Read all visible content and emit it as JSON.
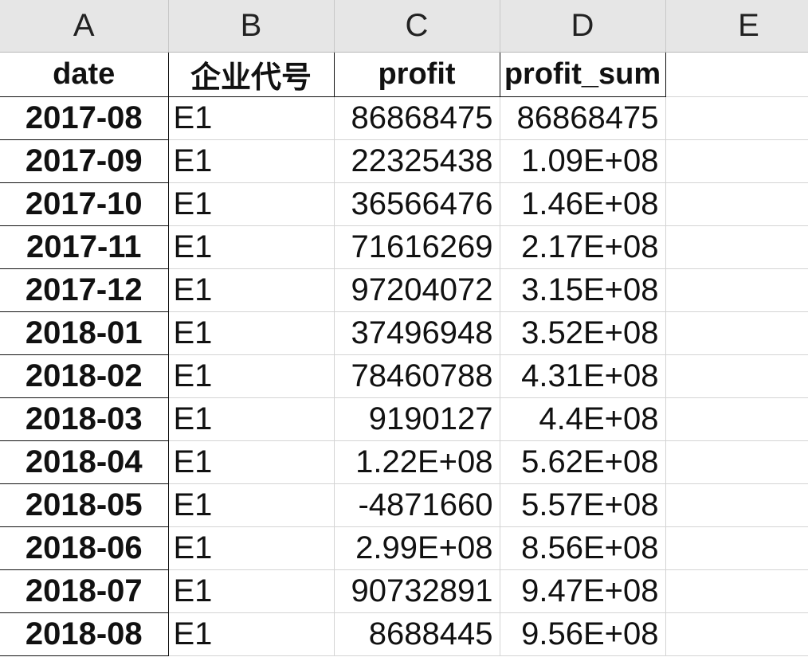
{
  "columns": [
    "A",
    "B",
    "C",
    "D",
    "E"
  ],
  "headers": {
    "date": "date",
    "code": "企业代号",
    "profit": "profit",
    "profit_sum": "profit_sum"
  },
  "rows": [
    {
      "date": "2017-08",
      "code": "E1",
      "profit": "86868475",
      "profit_sum": "86868475"
    },
    {
      "date": "2017-09",
      "code": "E1",
      "profit": "22325438",
      "profit_sum": "1.09E+08"
    },
    {
      "date": "2017-10",
      "code": "E1",
      "profit": "36566476",
      "profit_sum": "1.46E+08"
    },
    {
      "date": "2017-11",
      "code": "E1",
      "profit": "71616269",
      "profit_sum": "2.17E+08"
    },
    {
      "date": "2017-12",
      "code": "E1",
      "profit": "97204072",
      "profit_sum": "3.15E+08"
    },
    {
      "date": "2018-01",
      "code": "E1",
      "profit": "37496948",
      "profit_sum": "3.52E+08"
    },
    {
      "date": "2018-02",
      "code": "E1",
      "profit": "78460788",
      "profit_sum": "4.31E+08"
    },
    {
      "date": "2018-03",
      "code": "E1",
      "profit": "9190127",
      "profit_sum": "4.4E+08"
    },
    {
      "date": "2018-04",
      "code": "E1",
      "profit": "1.22E+08",
      "profit_sum": "5.62E+08"
    },
    {
      "date": "2018-05",
      "code": "E1",
      "profit": "-4871660",
      "profit_sum": "5.57E+08"
    },
    {
      "date": "2018-06",
      "code": "E1",
      "profit": "2.99E+08",
      "profit_sum": "8.56E+08"
    },
    {
      "date": "2018-07",
      "code": "E1",
      "profit": "90732891",
      "profit_sum": "9.47E+08"
    },
    {
      "date": "2018-08",
      "code": "E1",
      "profit": "8688445",
      "profit_sum": "9.56E+08"
    }
  ]
}
